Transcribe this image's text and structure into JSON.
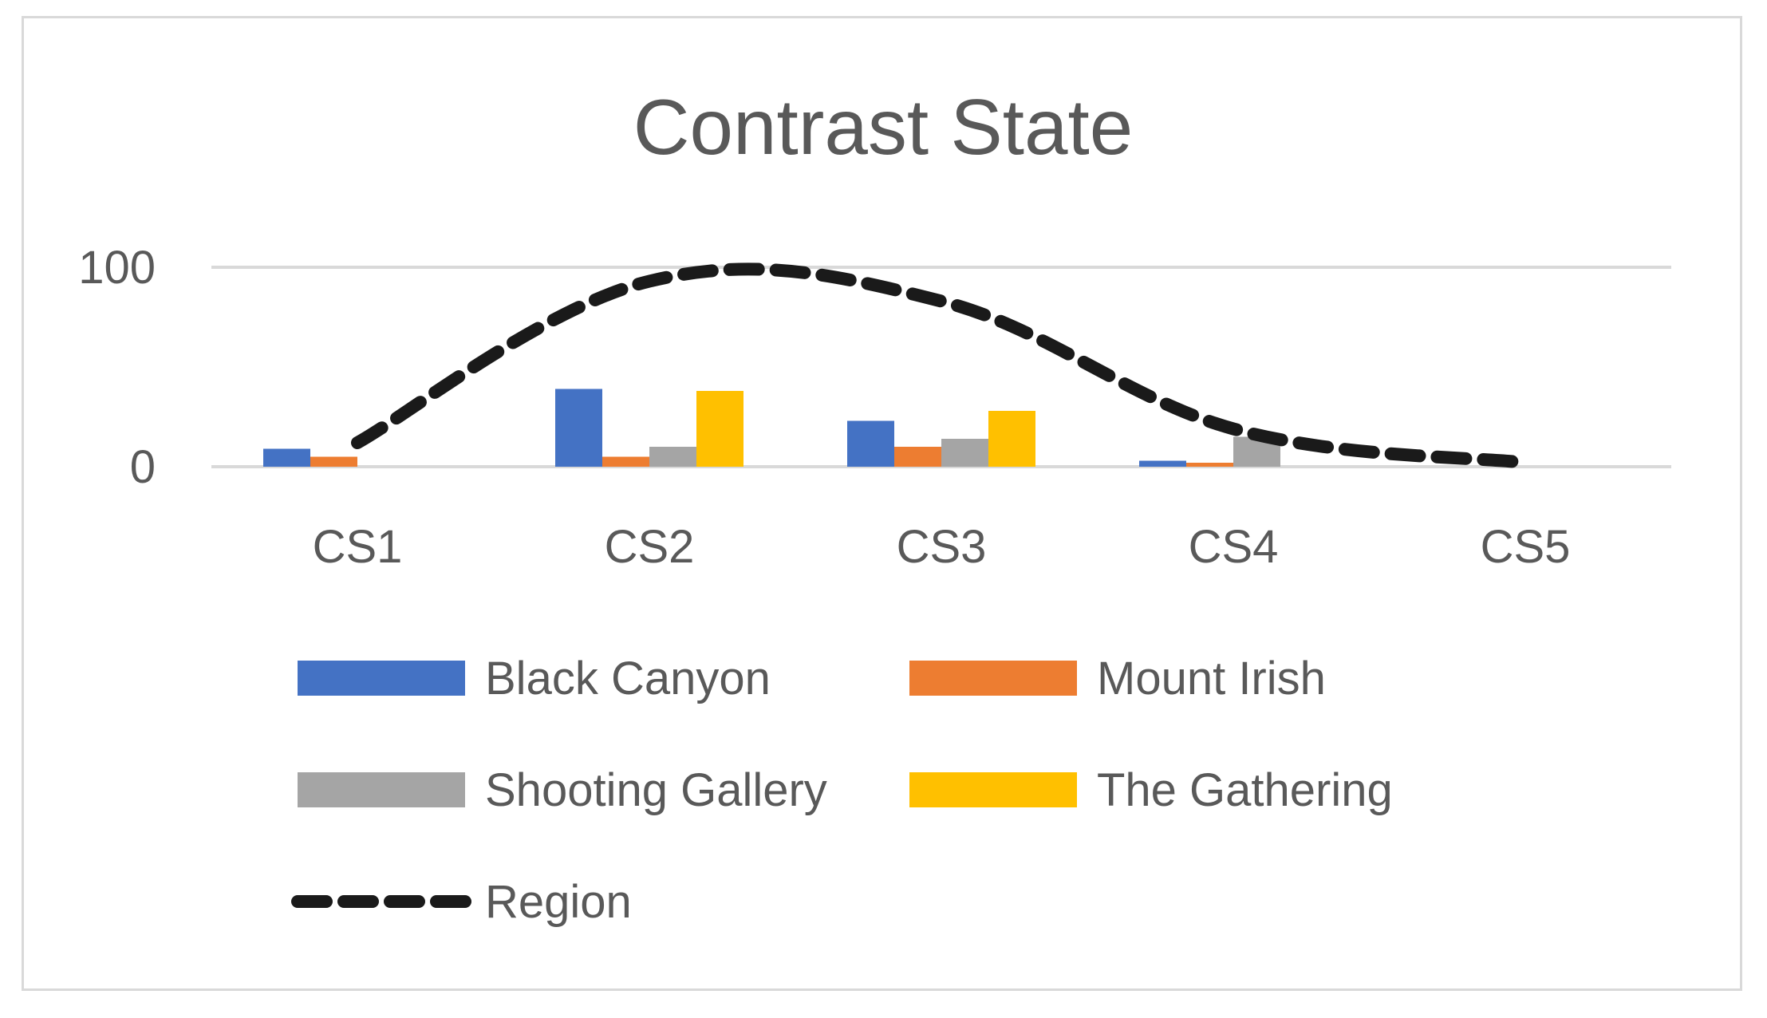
{
  "chart_data": {
    "type": "bar",
    "title": "Contrast State",
    "categories": [
      "CS1",
      "CS2",
      "CS3",
      "CS4",
      "CS5"
    ],
    "ylim": [
      0,
      100
    ],
    "yticks": [
      0,
      100
    ],
    "grid": true,
    "legend_position": "bottom",
    "series": [
      {
        "name": "Black Canyon",
        "kind": "bar",
        "color": "#4472C4",
        "values": [
          9,
          39,
          23,
          3,
          0
        ]
      },
      {
        "name": "Mount Irish",
        "kind": "bar",
        "color": "#ED7D31",
        "values": [
          5,
          5,
          10,
          2,
          0
        ]
      },
      {
        "name": "Shooting Gallery",
        "kind": "bar",
        "color": "#A5A5A5",
        "values": [
          0,
          10,
          14,
          15,
          0
        ]
      },
      {
        "name": "The Gathering",
        "kind": "bar",
        "color": "#FFC000",
        "values": [
          0,
          38,
          28,
          0,
          0
        ]
      },
      {
        "name": "Region",
        "kind": "line",
        "color": "#1a1a1a",
        "dashed": true,
        "values": [
          12,
          93,
          83,
          19,
          2
        ]
      }
    ]
  }
}
